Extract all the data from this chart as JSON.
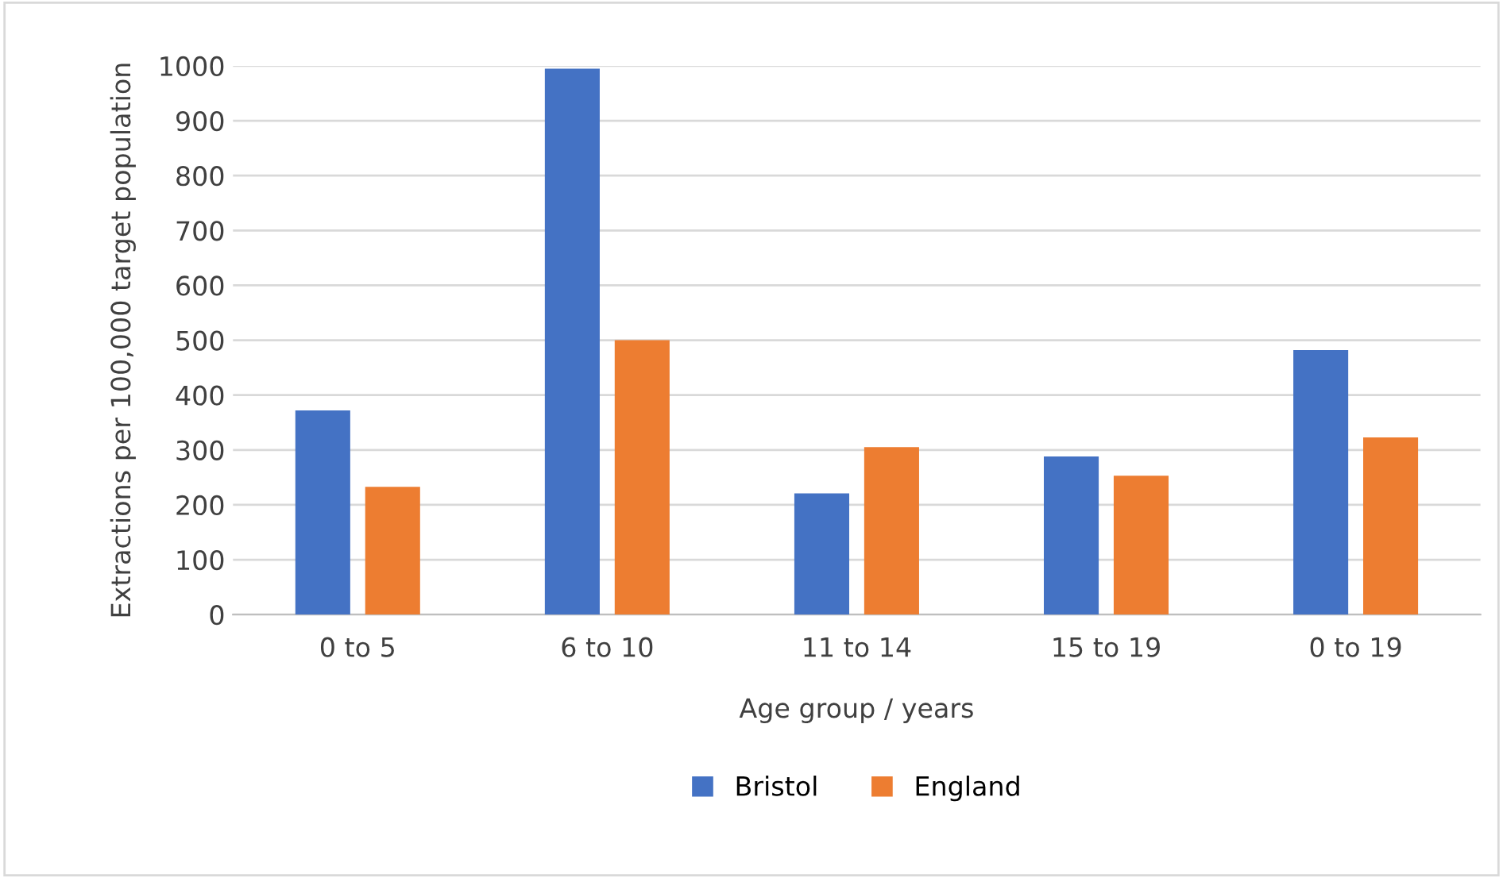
{
  "chart_data": {
    "type": "bar",
    "xlabel": "Age group / years",
    "ylabel": "Extractions per 100,000 target population",
    "categories": [
      "0 to 5",
      "6 to 10",
      "11 to 14",
      "15 to 19",
      "0 to 19"
    ],
    "series": [
      {
        "name": "Bristol",
        "color": "#4472c4",
        "values": [
          372,
          995,
          221,
          288,
          482
        ]
      },
      {
        "name": "England",
        "color": "#ed7d31",
        "values": [
          233,
          500,
          305,
          253,
          323
        ]
      }
    ],
    "ylim": [
      0,
      1000
    ],
    "yticks": [
      0,
      100,
      200,
      300,
      400,
      500,
      600,
      700,
      800,
      900,
      1000
    ],
    "grid": "y",
    "legend": "bottom"
  }
}
